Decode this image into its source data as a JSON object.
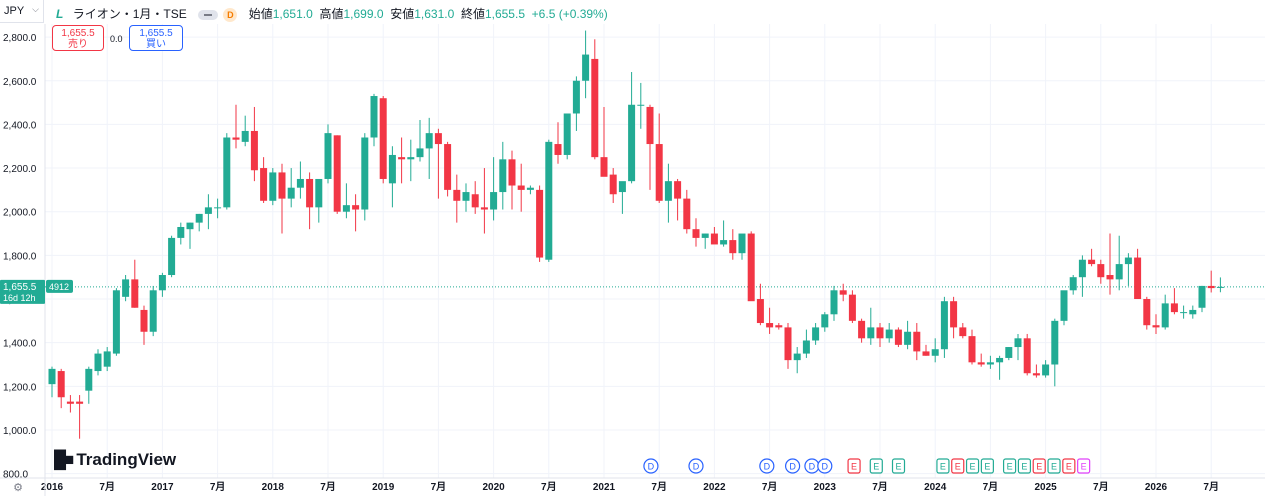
{
  "header": {
    "currency": "JPY",
    "symbol_title": "ライオン・1月・TSE",
    "interval_badge": "D",
    "ohlc": {
      "open_label": "始値",
      "open": "1,651.0",
      "high_label": "高値",
      "high": "1,699.0",
      "low_label": "安値",
      "low": "1,631.0",
      "close_label": "終値",
      "close": "1,655.5",
      "change": "+6.5 (+0.39%)"
    }
  },
  "trade": {
    "sell_price": "1,655.5",
    "sell_label": "売り",
    "spread": "0.0",
    "buy_price": "1,655.5",
    "buy_label": "買い"
  },
  "price_tag": {
    "price": "1,655.5",
    "countdown": "16d 12h",
    "code": "4912"
  },
  "branding": "TradingView",
  "colors": {
    "up": "#22ab94",
    "down": "#f23645",
    "grid": "#f0f3fa",
    "axis_text": "#131722",
    "last_line": "#22ab94"
  },
  "chart_data": {
    "type": "candlestick",
    "interval": "1M",
    "y_ticks": [
      800,
      1000,
      1200,
      1400,
      1600,
      1800,
      2000,
      2200,
      2400,
      2600,
      2800
    ],
    "y_tick_labels": [
      "800.0",
      "1,000.0",
      "1,200.0",
      "1,400.0",
      "1,600.0",
      "1,800.0",
      "2,000.0",
      "2,200.0",
      "2,400.0",
      "2,600.0",
      "2,800.0"
    ],
    "ylim": [
      780,
      2860
    ],
    "x_labels": [
      {
        "i": 0,
        "text": "2016"
      },
      {
        "i": 6,
        "text": "7月"
      },
      {
        "i": 12,
        "text": "2017"
      },
      {
        "i": 18,
        "text": "7月"
      },
      {
        "i": 24,
        "text": "2018"
      },
      {
        "i": 30,
        "text": "7月"
      },
      {
        "i": 36,
        "text": "2019"
      },
      {
        "i": 42,
        "text": "7月"
      },
      {
        "i": 48,
        "text": "2020"
      },
      {
        "i": 54,
        "text": "7月"
      },
      {
        "i": 60,
        "text": "2021"
      },
      {
        "i": 66,
        "text": "7月"
      },
      {
        "i": 72,
        "text": "2022"
      },
      {
        "i": 78,
        "text": "7月"
      },
      {
        "i": 84,
        "text": "2023"
      },
      {
        "i": 90,
        "text": "7月"
      },
      {
        "i": 96,
        "text": "2024"
      },
      {
        "i": 102,
        "text": "7月"
      },
      {
        "i": 108,
        "text": "2025"
      },
      {
        "i": 114,
        "text": "7月"
      },
      {
        "i": 120,
        "text": "2026"
      },
      {
        "i": 126,
        "text": "7月"
      }
    ],
    "last_price": 1655.5,
    "ohlc": [
      [
        1210,
        1290,
        1150,
        1280
      ],
      [
        1270,
        1280,
        1100,
        1150
      ],
      [
        1130,
        1160,
        1080,
        1120
      ],
      [
        1130,
        1160,
        960,
        1120
      ],
      [
        1180,
        1290,
        1120,
        1280
      ],
      [
        1270,
        1370,
        1250,
        1350
      ],
      [
        1290,
        1380,
        1270,
        1360
      ],
      [
        1350,
        1650,
        1340,
        1640
      ],
      [
        1610,
        1710,
        1590,
        1690
      ],
      [
        1690,
        1780,
        1560,
        1560
      ],
      [
        1550,
        1570,
        1390,
        1450
      ],
      [
        1450,
        1660,
        1430,
        1640
      ],
      [
        1640,
        1720,
        1610,
        1710
      ],
      [
        1710,
        1890,
        1700,
        1880
      ],
      [
        1880,
        1950,
        1850,
        1930
      ],
      [
        1920,
        1950,
        1830,
        1950
      ],
      [
        1950,
        1990,
        1910,
        1990
      ],
      [
        1990,
        2080,
        1920,
        2020
      ],
      [
        2020,
        2060,
        1970,
        2020
      ],
      [
        2020,
        2360,
        2010,
        2340
      ],
      [
        2340,
        2490,
        2290,
        2330
      ],
      [
        2320,
        2440,
        2300,
        2370
      ],
      [
        2370,
        2480,
        2140,
        2190
      ],
      [
        2200,
        2250,
        2040,
        2050
      ],
      [
        2050,
        2200,
        2030,
        2180
      ],
      [
        2180,
        2220,
        1900,
        2060
      ],
      [
        2060,
        2200,
        2020,
        2110
      ],
      [
        2110,
        2230,
        2060,
        2150
      ],
      [
        2150,
        2180,
        1920,
        2020
      ],
      [
        2020,
        2140,
        1950,
        2150
      ],
      [
        2150,
        2400,
        2130,
        2360
      ],
      [
        2350,
        2350,
        1990,
        2000
      ],
      [
        2000,
        2130,
        1970,
        2030
      ],
      [
        2030,
        2080,
        1910,
        2010
      ],
      [
        2010,
        2360,
        1960,
        2340
      ],
      [
        2340,
        2540,
        2300,
        2530
      ],
      [
        2520,
        2530,
        2130,
        2150
      ],
      [
        2130,
        2300,
        2020,
        2260
      ],
      [
        2250,
        2340,
        2130,
        2240
      ],
      [
        2240,
        2330,
        2140,
        2250
      ],
      [
        2250,
        2420,
        2230,
        2290
      ],
      [
        2290,
        2430,
        2150,
        2360
      ],
      [
        2360,
        2380,
        2060,
        2310
      ],
      [
        2310,
        2320,
        2070,
        2100
      ],
      [
        2100,
        2170,
        1950,
        2050
      ],
      [
        2050,
        2130,
        2000,
        2090
      ],
      [
        2080,
        2140,
        1990,
        2020
      ],
      [
        2020,
        2200,
        1900,
        2010
      ],
      [
        2010,
        2250,
        1960,
        2090
      ],
      [
        2090,
        2320,
        2010,
        2240
      ],
      [
        2240,
        2280,
        2010,
        2120
      ],
      [
        2120,
        2220,
        2000,
        2100
      ],
      [
        2100,
        2120,
        2080,
        2110
      ],
      [
        2100,
        2120,
        1770,
        1790
      ],
      [
        1780,
        2330,
        1770,
        2320
      ],
      [
        2310,
        2410,
        2220,
        2260
      ],
      [
        2260,
        2450,
        2240,
        2450
      ],
      [
        2450,
        2620,
        2370,
        2600
      ],
      [
        2600,
        2830,
        2520,
        2720
      ],
      [
        2700,
        2790,
        2240,
        2250
      ],
      [
        2250,
        2480,
        2170,
        2160
      ],
      [
        2170,
        2200,
        2040,
        2080
      ],
      [
        2090,
        2120,
        1990,
        2140
      ],
      [
        2140,
        2640,
        2130,
        2490
      ],
      [
        2490,
        2590,
        2380,
        2490
      ],
      [
        2480,
        2490,
        2100,
        2310
      ],
      [
        2310,
        2450,
        2040,
        2050
      ],
      [
        2050,
        2220,
        1950,
        2140
      ],
      [
        2140,
        2150,
        1960,
        2060
      ],
      [
        2060,
        2100,
        1900,
        1920
      ],
      [
        1920,
        1970,
        1840,
        1880
      ],
      [
        1880,
        1900,
        1830,
        1900
      ],
      [
        1900,
        1930,
        1870,
        1850
      ],
      [
        1850,
        1960,
        1840,
        1870
      ],
      [
        1870,
        1920,
        1780,
        1810
      ],
      [
        1810,
        1890,
        1780,
        1900
      ],
      [
        1900,
        1910,
        1610,
        1590
      ],
      [
        1600,
        1670,
        1480,
        1490
      ],
      [
        1490,
        1560,
        1440,
        1470
      ],
      [
        1480,
        1490,
        1460,
        1470
      ],
      [
        1470,
        1490,
        1280,
        1320
      ],
      [
        1320,
        1380,
        1260,
        1350
      ],
      [
        1350,
        1460,
        1330,
        1410
      ],
      [
        1410,
        1490,
        1390,
        1470
      ],
      [
        1470,
        1540,
        1450,
        1530
      ],
      [
        1530,
        1660,
        1500,
        1640
      ],
      [
        1640,
        1670,
        1590,
        1620
      ],
      [
        1620,
        1640,
        1490,
        1500
      ],
      [
        1500,
        1510,
        1400,
        1420
      ],
      [
        1420,
        1560,
        1390,
        1470
      ],
      [
        1470,
        1490,
        1380,
        1420
      ],
      [
        1420,
        1490,
        1400,
        1460
      ],
      [
        1460,
        1470,
        1380,
        1390
      ],
      [
        1390,
        1500,
        1370,
        1450
      ],
      [
        1450,
        1490,
        1320,
        1360
      ],
      [
        1360,
        1390,
        1340,
        1340
      ],
      [
        1340,
        1420,
        1310,
        1370
      ],
      [
        1370,
        1610,
        1330,
        1590
      ],
      [
        1590,
        1610,
        1420,
        1470
      ],
      [
        1470,
        1490,
        1420,
        1430
      ],
      [
        1430,
        1460,
        1300,
        1310
      ],
      [
        1310,
        1350,
        1290,
        1300
      ],
      [
        1300,
        1340,
        1280,
        1310
      ],
      [
        1310,
        1340,
        1230,
        1330
      ],
      [
        1330,
        1380,
        1320,
        1380
      ],
      [
        1380,
        1440,
        1320,
        1420
      ],
      [
        1420,
        1440,
        1250,
        1260
      ],
      [
        1260,
        1300,
        1240,
        1250
      ],
      [
        1250,
        1320,
        1240,
        1300
      ],
      [
        1300,
        1510,
        1200,
        1500
      ],
      [
        1500,
        1620,
        1480,
        1640
      ],
      [
        1640,
        1710,
        1620,
        1700
      ],
      [
        1700,
        1800,
        1610,
        1780
      ],
      [
        1780,
        1830,
        1750,
        1760
      ],
      [
        1760,
        1780,
        1670,
        1700
      ],
      [
        1710,
        1900,
        1620,
        1690
      ],
      [
        1690,
        1890,
        1640,
        1760
      ],
      [
        1760,
        1810,
        1660,
        1790
      ],
      [
        1790,
        1830,
        1620,
        1600
      ],
      [
        1600,
        1610,
        1460,
        1480
      ],
      [
        1480,
        1530,
        1440,
        1470
      ],
      [
        1470,
        1620,
        1460,
        1580
      ],
      [
        1580,
        1650,
        1530,
        1540
      ],
      [
        1540,
        1570,
        1510,
        1540
      ],
      [
        1530,
        1570,
        1510,
        1550
      ],
      [
        1560,
        1660,
        1540,
        1660
      ],
      [
        1660,
        1730,
        1630,
        1650
      ],
      [
        1651,
        1699,
        1631,
        1655.5
      ]
    ],
    "dividend_markers": [
      {
        "i": 93,
        "label": "D"
      },
      {
        "i": 100,
        "label": "D"
      },
      {
        "i": 111,
        "label": "D"
      },
      {
        "i": 115,
        "label": "D"
      },
      {
        "i": 118,
        "label": "D"
      },
      {
        "i": 120,
        "label": "D"
      }
    ],
    "earnings_markers": [
      {
        "i": 111,
        "label": "E",
        "color": "#f23645"
      },
      {
        "i": 114,
        "label": "E",
        "color": "#22ab94"
      },
      {
        "i": 117,
        "label": "E",
        "color": "#22ab94"
      },
      {
        "i": 123,
        "label": "E",
        "color": "#22ab94"
      },
      {
        "i": 125,
        "label": "E",
        "color": "#f23645"
      },
      {
        "i": 127,
        "label": "E",
        "color": "#22ab94"
      },
      {
        "i": 129,
        "label": "E",
        "color": "#22ab94"
      },
      {
        "i": 132,
        "label": "E",
        "color": "#22ab94"
      },
      {
        "i": 134,
        "label": "E",
        "color": "#22ab94"
      },
      {
        "i": 136,
        "label": "E",
        "color": "#f23645"
      },
      {
        "i": 138,
        "label": "E",
        "color": "#22ab94"
      },
      {
        "i": 140,
        "label": "E",
        "color": "#f23645"
      },
      {
        "i": 142,
        "label": "E",
        "color": "#e040fb"
      }
    ]
  }
}
